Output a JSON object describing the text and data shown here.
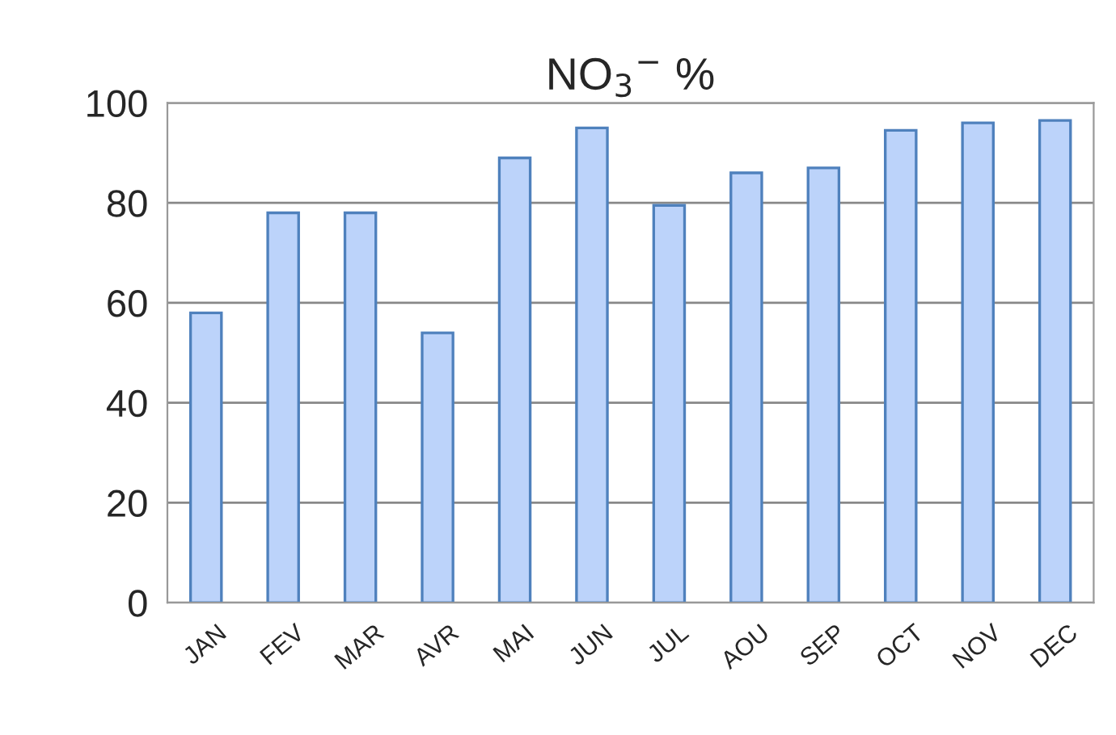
{
  "chart_data": {
    "type": "bar",
    "title": "NO$_{3}$$^{−}$ %",
    "categories": [
      "JAN",
      "FEV",
      "MAR",
      "AVR",
      "MAI",
      "JUN",
      "JUL",
      "AOU",
      "SEP",
      "OCT",
      "NOV",
      "DEC"
    ],
    "values": [
      58,
      78,
      78,
      54,
      89,
      95,
      79.5,
      86,
      87,
      94.5,
      96,
      96.5
    ],
    "color": "#bcd3fa",
    "ylim": [
      0,
      100
    ],
    "yticks": [
      0,
      20,
      40,
      60,
      80,
      100
    ],
    "grid": "y"
  }
}
